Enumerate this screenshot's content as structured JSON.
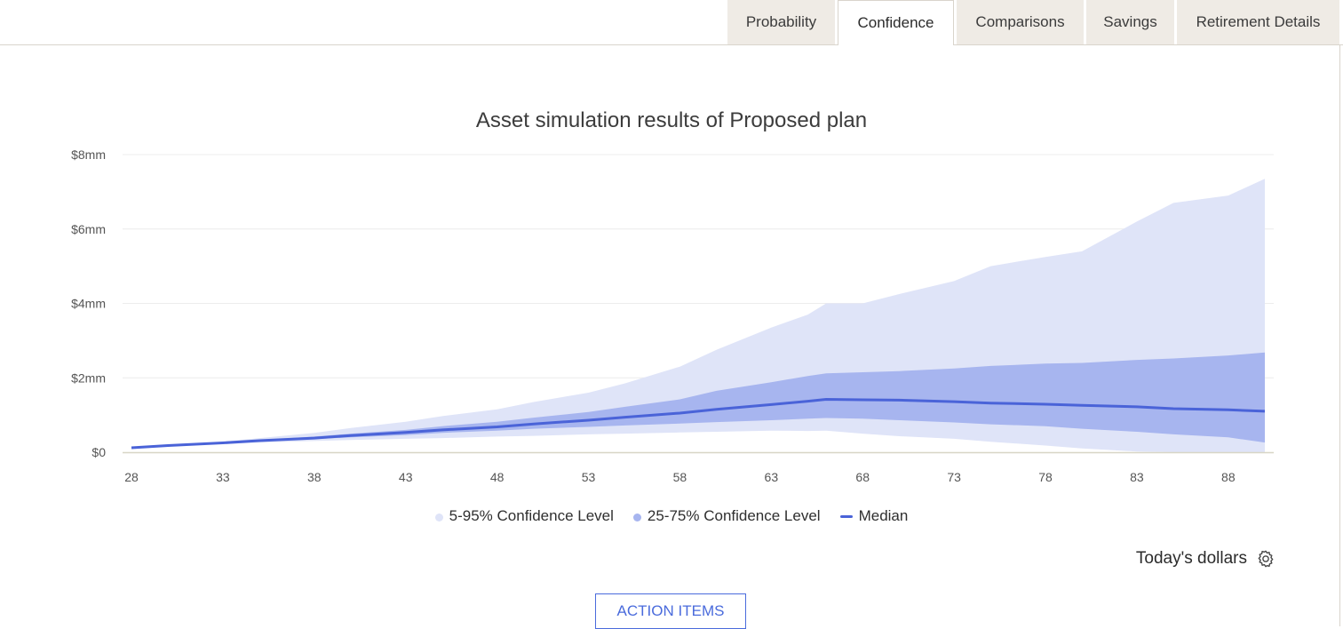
{
  "tabs": [
    {
      "label": "Probability",
      "active": false
    },
    {
      "label": "Confidence",
      "active": true
    },
    {
      "label": "Comparisons",
      "active": false
    },
    {
      "label": "Savings",
      "active": false
    },
    {
      "label": "Retirement Details",
      "active": false
    }
  ],
  "controls": {
    "dollars_label": "Today's dollars",
    "action_button": "ACTION ITEMS"
  },
  "colors": {
    "band_outer": "#dfe4f8",
    "band_inner": "#a7b5ef",
    "median": "#4a63d8",
    "button": "#4a6bdc"
  },
  "icons": {
    "settings": "gear-icon"
  },
  "chart_data": {
    "type": "area",
    "title": "Asset simulation results of Proposed plan",
    "xlabel": "",
    "ylabel": "",
    "xlim": [
      28,
      90
    ],
    "ylim": [
      0,
      8
    ],
    "y_ticks": [
      "$0",
      "$2mm",
      "$4mm",
      "$6mm",
      "$8mm"
    ],
    "y_tick_values": [
      0,
      2,
      4,
      6,
      8
    ],
    "x_ticks": [
      "28",
      "33",
      "38",
      "43",
      "48",
      "53",
      "58",
      "63",
      "68",
      "73",
      "78",
      "83",
      "88"
    ],
    "x_tick_values": [
      28,
      33,
      38,
      43,
      48,
      53,
      58,
      63,
      68,
      73,
      78,
      83,
      88
    ],
    "grid": true,
    "legend_position": "bottom-center",
    "x": [
      28,
      30,
      33,
      35,
      38,
      40,
      43,
      45,
      48,
      50,
      53,
      55,
      58,
      60,
      63,
      65,
      66,
      68,
      70,
      73,
      75,
      78,
      80,
      83,
      85,
      88,
      90
    ],
    "series": [
      {
        "name": "5-95% Confidence Level",
        "color": "#dfe4f8",
        "upper": [
          0.12,
          0.2,
          0.28,
          0.38,
          0.52,
          0.65,
          0.82,
          0.97,
          1.15,
          1.35,
          1.6,
          1.85,
          2.3,
          2.75,
          3.35,
          3.7,
          4.0,
          4.0,
          4.25,
          4.6,
          5.0,
          5.25,
          5.4,
          6.2,
          6.7,
          6.9,
          7.35
        ],
        "lower": [
          0.12,
          0.17,
          0.22,
          0.26,
          0.3,
          0.33,
          0.36,
          0.38,
          0.42,
          0.44,
          0.48,
          0.5,
          0.53,
          0.55,
          0.58,
          0.57,
          0.58,
          0.5,
          0.43,
          0.36,
          0.28,
          0.18,
          0.1,
          0.02,
          0.0,
          0.0,
          0.0
        ]
      },
      {
        "name": "25-75% Confidence Level",
        "color": "#a7b5ef",
        "upper": [
          0.12,
          0.19,
          0.26,
          0.33,
          0.42,
          0.5,
          0.6,
          0.7,
          0.82,
          0.93,
          1.08,
          1.22,
          1.42,
          1.65,
          1.88,
          2.05,
          2.12,
          2.15,
          2.18,
          2.25,
          2.32,
          2.38,
          2.4,
          2.48,
          2.52,
          2.6,
          2.68
        ],
        "lower": [
          0.12,
          0.18,
          0.24,
          0.29,
          0.35,
          0.4,
          0.46,
          0.52,
          0.58,
          0.63,
          0.68,
          0.72,
          0.77,
          0.81,
          0.86,
          0.9,
          0.92,
          0.9,
          0.86,
          0.8,
          0.75,
          0.7,
          0.63,
          0.55,
          0.48,
          0.4,
          0.26
        ]
      },
      {
        "name": "Median",
        "color": "#4a63d8",
        "values": [
          0.12,
          0.18,
          0.25,
          0.31,
          0.38,
          0.45,
          0.53,
          0.6,
          0.68,
          0.76,
          0.86,
          0.94,
          1.05,
          1.15,
          1.28,
          1.37,
          1.42,
          1.41,
          1.4,
          1.36,
          1.32,
          1.29,
          1.26,
          1.22,
          1.17,
          1.14,
          1.1
        ]
      }
    ]
  }
}
